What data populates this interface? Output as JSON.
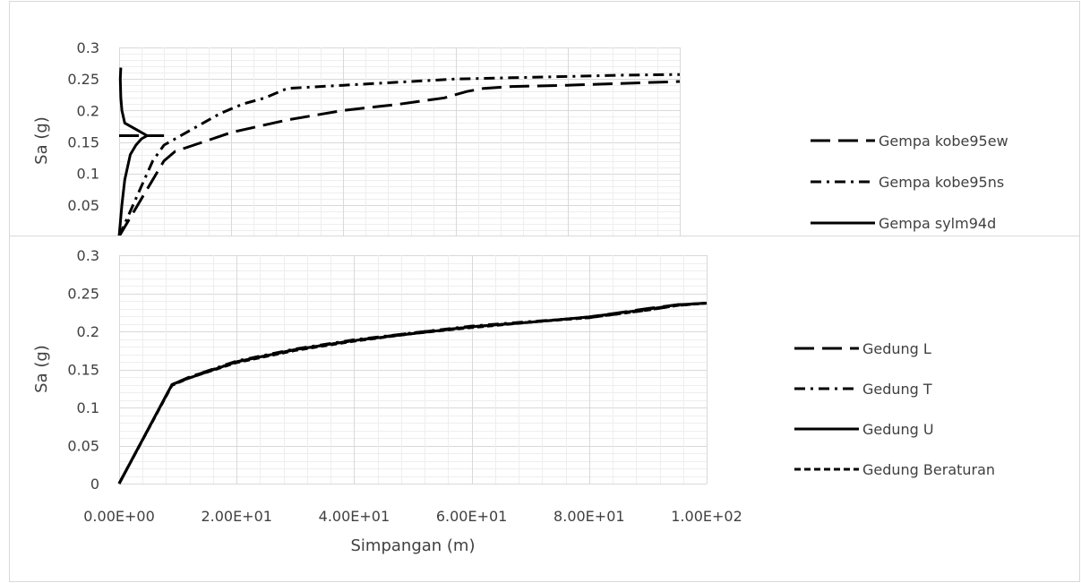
{
  "chart_data": [
    {
      "type": "line",
      "title": "",
      "xlabel": "",
      "ylabel": "Sa (g)",
      "xlim": [
        0,
        100
      ],
      "ylim": [
        0,
        0.3
      ],
      "y_ticks": [
        "0.05",
        "0.1",
        "0.15",
        "0.2",
        "0.25",
        "0.3"
      ],
      "grid": true,
      "legend_position": "right",
      "series": [
        {
          "name": "Gempa kobe95ew",
          "dash": "long-dash",
          "x": [
            0,
            2,
            4,
            6,
            8,
            10,
            15,
            20,
            25,
            30,
            40,
            50,
            58,
            62,
            65,
            70,
            80,
            90,
            100
          ],
          "y": [
            0,
            0.03,
            0.06,
            0.09,
            0.12,
            0.135,
            0.15,
            0.165,
            0.175,
            0.185,
            0.2,
            0.21,
            0.22,
            0.23,
            0.235,
            0.238,
            0.24,
            0.243,
            0.246
          ]
        },
        {
          "name": "Gempa kobe95ns",
          "dash": "dash-dot",
          "x": [
            0,
            2,
            4,
            6,
            8,
            10,
            12,
            14,
            18,
            22,
            26,
            30,
            40,
            50,
            60,
            70,
            80,
            90,
            100
          ],
          "y": [
            0,
            0.04,
            0.08,
            0.12,
            0.145,
            0.155,
            0.165,
            0.175,
            0.195,
            0.21,
            0.22,
            0.235,
            0.24,
            0.245,
            0.25,
            0.252,
            0.254,
            0.256,
            0.257
          ]
        },
        {
          "name": "Gempa sylm94d",
          "dash": "solid",
          "x": [
            0,
            0.5,
            1,
            2,
            3,
            4,
            5,
            3,
            1,
            0.5,
            0.3,
            0.2,
            0.3
          ],
          "y": [
            0,
            0.05,
            0.09,
            0.13,
            0.145,
            0.155,
            0.16,
            0.17,
            0.18,
            0.2,
            0.22,
            0.25,
            0.268
          ]
        },
        {
          "name": "",
          "dash": "long-dash",
          "x": [
            0,
            8
          ],
          "y": [
            0.16,
            0.16
          ]
        }
      ]
    },
    {
      "type": "line",
      "title": "",
      "xlabel": "Simpangan (m)",
      "ylabel": "Sa (g)",
      "xlim": [
        0,
        100
      ],
      "ylim": [
        0,
        0.3
      ],
      "x_ticks": [
        "0.00E+00",
        "2.00E+01",
        "4.00E+01",
        "6.00E+01",
        "8.00E+01",
        "1.00E+02"
      ],
      "y_ticks": [
        "0",
        "0.05",
        "0.1",
        "0.15",
        "0.2",
        "0.25",
        "0.3"
      ],
      "grid": true,
      "legend_position": "right",
      "series": [
        {
          "name": "Gedung L",
          "dash": "long-dash",
          "x": [
            0,
            9,
            12,
            20,
            30,
            40,
            50,
            60,
            70,
            80,
            90,
            95,
            100
          ],
          "y": [
            0,
            0.13,
            0.14,
            0.16,
            0.176,
            0.188,
            0.198,
            0.206,
            0.212,
            0.219,
            0.23,
            0.235,
            0.237
          ]
        },
        {
          "name": "Gedung T",
          "dash": "dash-dot",
          "x": [
            0,
            9,
            12,
            20,
            30,
            40,
            50,
            60,
            70,
            80,
            90,
            95,
            100
          ],
          "y": [
            0,
            0.13,
            0.14,
            0.161,
            0.177,
            0.189,
            0.198,
            0.207,
            0.213,
            0.218,
            0.228,
            0.234,
            0.237
          ]
        },
        {
          "name": "Gedung U",
          "dash": "solid",
          "x": [
            0,
            9,
            12,
            20,
            30,
            40,
            50,
            60,
            70,
            80,
            90,
            95,
            100
          ],
          "y": [
            0,
            0.13,
            0.139,
            0.16,
            0.176,
            0.188,
            0.197,
            0.206,
            0.212,
            0.219,
            0.229,
            0.235,
            0.237
          ]
        },
        {
          "name": "Gedung Beraturan",
          "dash": "short-dash",
          "x": [
            0,
            9,
            12,
            20,
            30,
            40,
            50,
            60,
            70,
            80,
            90,
            95,
            100
          ],
          "y": [
            0,
            0.129,
            0.139,
            0.159,
            0.175,
            0.187,
            0.197,
            0.205,
            0.212,
            0.218,
            0.228,
            0.234,
            0.237
          ]
        }
      ]
    }
  ]
}
